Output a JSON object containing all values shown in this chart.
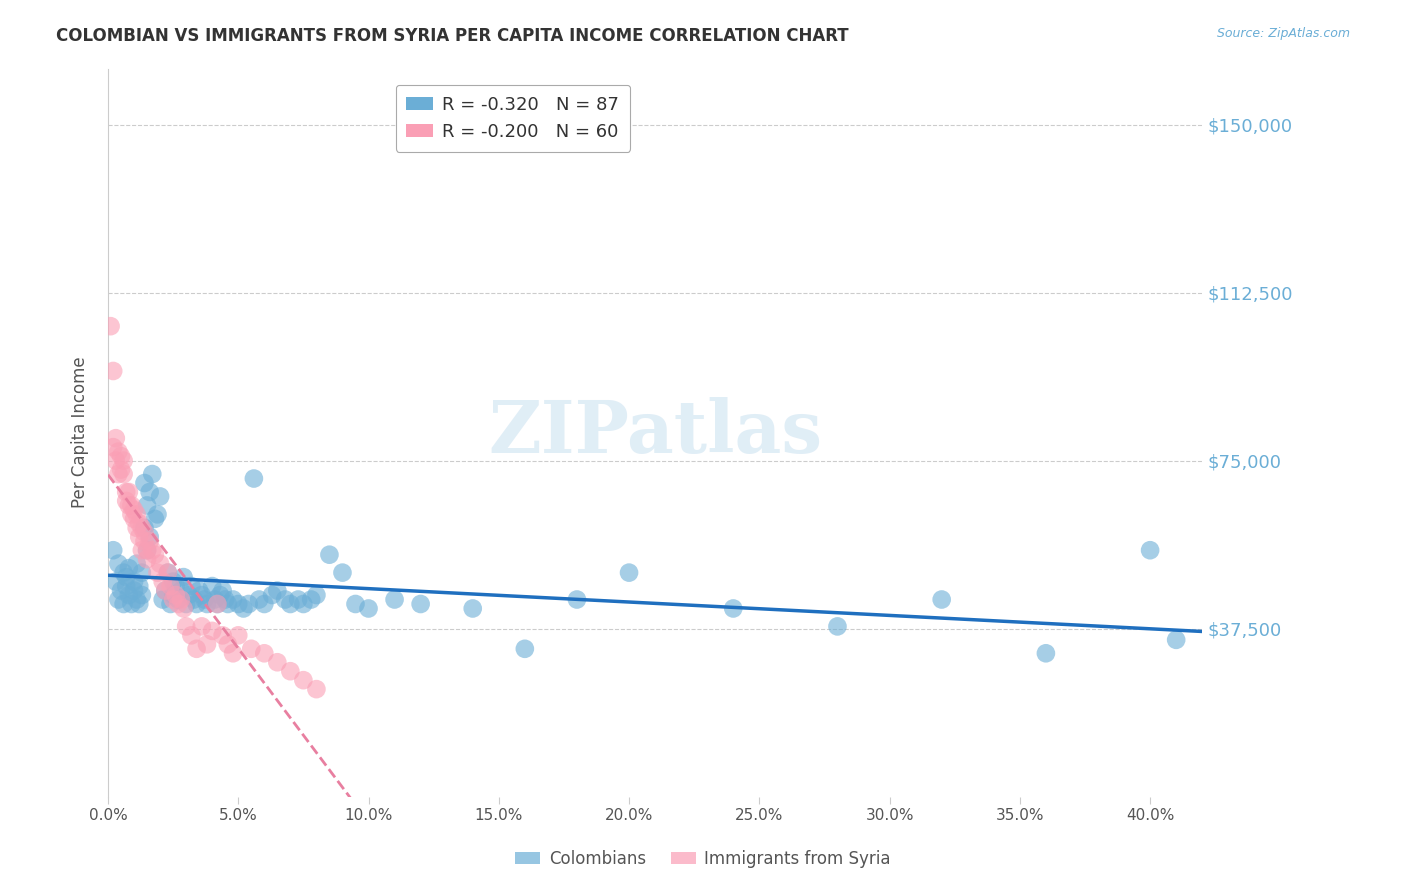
{
  "title": "COLOMBIAN VS IMMIGRANTS FROM SYRIA PER CAPITA INCOME CORRELATION CHART",
  "source": "Source: ZipAtlas.com",
  "ylabel": "Per Capita Income",
  "ytick_labels": [
    "$37,500",
    "$75,000",
    "$112,500",
    "$150,000"
  ],
  "ytick_values": [
    37500,
    75000,
    112500,
    150000
  ],
  "ylim": [
    0,
    162500
  ],
  "xlim": [
    0.0,
    0.42
  ],
  "watermark": "ZIPatlas",
  "blue_color": "#6baed6",
  "pink_color": "#fa9fb5",
  "line_blue": "#1f6fbf",
  "line_pink": "#e87fa0",
  "grid_color": "#cccccc",
  "title_color": "#333333",
  "axis_label_color": "#555555",
  "right_tick_color": "#6baed6",
  "background": "#ffffff",
  "colombians_x": [
    0.002,
    0.003,
    0.004,
    0.004,
    0.005,
    0.006,
    0.006,
    0.007,
    0.007,
    0.008,
    0.008,
    0.009,
    0.01,
    0.01,
    0.011,
    0.011,
    0.012,
    0.012,
    0.013,
    0.013,
    0.014,
    0.014,
    0.015,
    0.015,
    0.016,
    0.016,
    0.017,
    0.018,
    0.019,
    0.02,
    0.021,
    0.022,
    0.023,
    0.024,
    0.025,
    0.025,
    0.026,
    0.027,
    0.028,
    0.029,
    0.03,
    0.031,
    0.032,
    0.033,
    0.034,
    0.035,
    0.036,
    0.037,
    0.038,
    0.04,
    0.041,
    0.042,
    0.043,
    0.044,
    0.045,
    0.046,
    0.048,
    0.05,
    0.052,
    0.054,
    0.056,
    0.058,
    0.06,
    0.063,
    0.065,
    0.068,
    0.07,
    0.073,
    0.075,
    0.078,
    0.08,
    0.085,
    0.09,
    0.095,
    0.1,
    0.11,
    0.12,
    0.14,
    0.16,
    0.18,
    0.2,
    0.24,
    0.28,
    0.32,
    0.36,
    0.4,
    0.41
  ],
  "colombians_y": [
    55000,
    48000,
    52000,
    44000,
    46000,
    50000,
    43000,
    49000,
    47000,
    51000,
    45000,
    43000,
    48000,
    46000,
    52000,
    44000,
    47000,
    43000,
    50000,
    45000,
    70000,
    60000,
    65000,
    55000,
    68000,
    58000,
    72000,
    62000,
    63000,
    67000,
    44000,
    46000,
    50000,
    43000,
    48000,
    45000,
    47000,
    44000,
    46000,
    49000,
    43000,
    45000,
    47000,
    44000,
    43000,
    46000,
    45000,
    44000,
    43000,
    47000,
    44000,
    43000,
    45000,
    46000,
    44000,
    43000,
    44000,
    43000,
    42000,
    43000,
    71000,
    44000,
    43000,
    45000,
    46000,
    44000,
    43000,
    44000,
    43000,
    44000,
    45000,
    54000,
    50000,
    43000,
    42000,
    44000,
    43000,
    42000,
    33000,
    44000,
    50000,
    42000,
    38000,
    44000,
    32000,
    55000,
    35000
  ],
  "syria_x": [
    0.001,
    0.002,
    0.002,
    0.003,
    0.003,
    0.004,
    0.004,
    0.005,
    0.005,
    0.006,
    0.006,
    0.007,
    0.007,
    0.008,
    0.008,
    0.009,
    0.009,
    0.01,
    0.01,
    0.011,
    0.011,
    0.012,
    0.012,
    0.013,
    0.013,
    0.014,
    0.014,
    0.015,
    0.015,
    0.016,
    0.017,
    0.018,
    0.019,
    0.02,
    0.021,
    0.022,
    0.023,
    0.024,
    0.025,
    0.026,
    0.027,
    0.028,
    0.029,
    0.03,
    0.032,
    0.034,
    0.036,
    0.038,
    0.04,
    0.042,
    0.044,
    0.046,
    0.048,
    0.05,
    0.055,
    0.06,
    0.065,
    0.07,
    0.075,
    0.08
  ],
  "syria_y": [
    105000,
    95000,
    78000,
    80000,
    75000,
    77000,
    72000,
    76000,
    73000,
    75000,
    72000,
    68000,
    66000,
    65000,
    68000,
    63000,
    65000,
    62000,
    64000,
    60000,
    63000,
    58000,
    61000,
    55000,
    60000,
    57000,
    59000,
    55000,
    53000,
    57000,
    55000,
    54000,
    50000,
    52000,
    48000,
    46000,
    50000,
    47000,
    44000,
    45000,
    43000,
    44000,
    42000,
    38000,
    36000,
    33000,
    38000,
    34000,
    37000,
    43000,
    36000,
    34000,
    32000,
    36000,
    33000,
    32000,
    30000,
    28000,
    26000,
    24000
  ]
}
